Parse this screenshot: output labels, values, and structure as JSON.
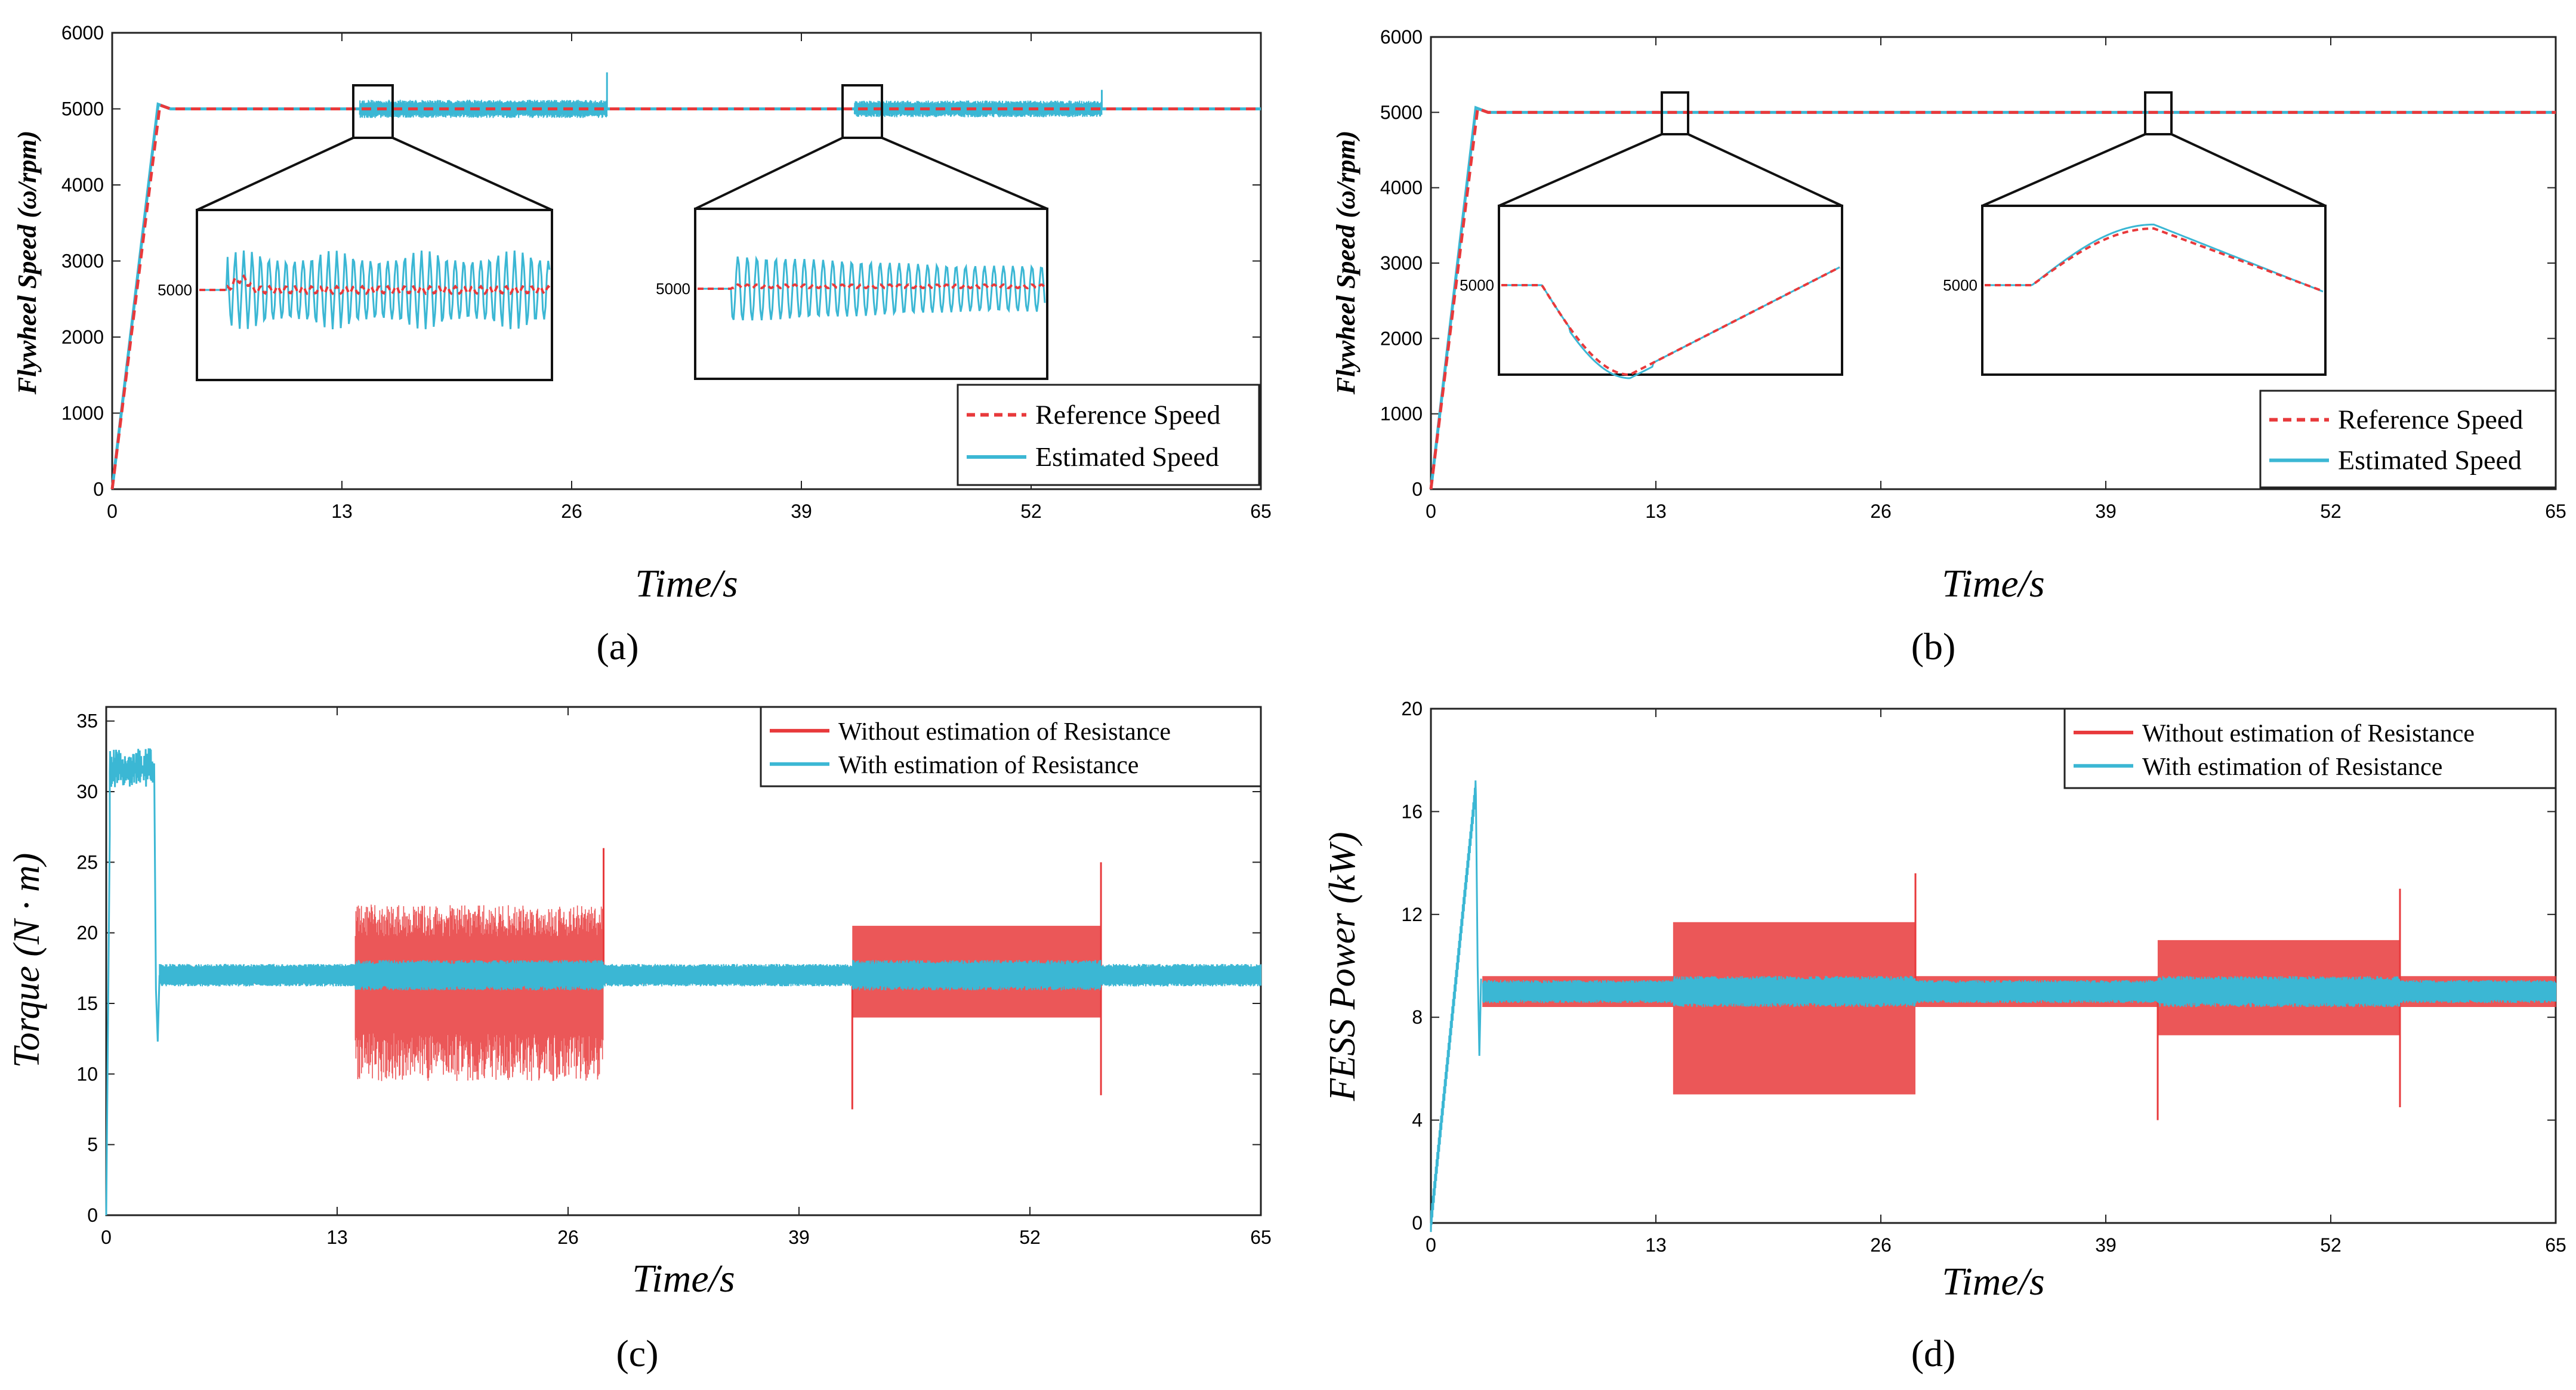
{
  "chart_data": [
    {
      "id": "a",
      "type": "line",
      "panel_label": "(a)",
      "xlabel": "Time/s",
      "ylabel": "Flywheel Speed (ω/rpm)",
      "xlim": [
        0,
        65
      ],
      "ylim": [
        0,
        6000
      ],
      "xticks": [
        0,
        13,
        26,
        39,
        52,
        65
      ],
      "yticks": [
        0,
        1000,
        2000,
        3000,
        4000,
        5000,
        6000
      ],
      "series": [
        {
          "name": "Reference Speed",
          "color": "#e8393b",
          "style": "dashed",
          "points": [
            [
              0,
              0
            ],
            [
              2.7,
              5050
            ],
            [
              3.3,
              5000
            ],
            [
              65,
              5000
            ]
          ]
        },
        {
          "name": "Estimated Speed",
          "color": "#3bb7d4",
          "style": "solid",
          "points": [
            [
              0,
              0
            ],
            [
              2.6,
              5060
            ],
            [
              3.3,
              5000
            ],
            [
              65,
              5000
            ]
          ],
          "oscillation_segments": [
            {
              "start": 14,
              "end": 28,
              "amplitude": 120
            },
            {
              "start": 42,
              "end": 56,
              "amplitude": 110
            }
          ],
          "spikes": [
            [
              28,
              5480
            ],
            [
              56,
              5250
            ]
          ]
        }
      ],
      "legend": {
        "position": "lower-right",
        "entries": [
          "Reference Speed",
          "Estimated Speed"
        ]
      },
      "insets": [
        {
          "label": "5000",
          "zoom_center_x": 14.5,
          "type": "oscillation_onset"
        },
        {
          "label": "5000",
          "zoom_center_x": 42.5,
          "type": "oscillation_decay"
        }
      ]
    },
    {
      "id": "b",
      "type": "line",
      "panel_label": "(b)",
      "xlabel": "Time/s",
      "ylabel": "Flywheel Speed (ω/rpm)",
      "xlim": [
        0,
        65
      ],
      "ylim": [
        0,
        6000
      ],
      "xticks": [
        0,
        13,
        26,
        39,
        52,
        65
      ],
      "yticks": [
        0,
        1000,
        2000,
        3000,
        4000,
        5000,
        6000
      ],
      "series": [
        {
          "name": "Reference Speed",
          "color": "#e8393b",
          "style": "dashed",
          "points": [
            [
              0,
              0
            ],
            [
              2.7,
              5050
            ],
            [
              3.3,
              5000
            ],
            [
              65,
              5000
            ]
          ]
        },
        {
          "name": "Estimated Speed",
          "color": "#3bb7d4",
          "style": "solid",
          "points": [
            [
              0,
              0
            ],
            [
              2.6,
              5060
            ],
            [
              3.3,
              5000
            ],
            [
              65,
              5000
            ]
          ]
        }
      ],
      "legend": {
        "position": "lower-right",
        "entries": [
          "Reference Speed",
          "Estimated Speed"
        ]
      },
      "insets": [
        {
          "label": "5000",
          "zoom_center_x": 14,
          "type": "dip"
        },
        {
          "label": "5000",
          "zoom_center_x": 41.5,
          "type": "bump"
        }
      ]
    },
    {
      "id": "c",
      "type": "line",
      "panel_label": "(c)",
      "xlabel": "Time/s",
      "ylabel": "Torque (N · m)",
      "xlim": [
        0,
        65
      ],
      "ylim": [
        0,
        36
      ],
      "xticks": [
        0,
        13,
        26,
        39,
        52,
        65
      ],
      "yticks": [
        0,
        5,
        10,
        15,
        20,
        25,
        30,
        35
      ],
      "series": [
        {
          "name": "Without estimation of  Resistance",
          "color": "#e8393b",
          "baseline": 17,
          "startup_level": 32.5,
          "startup_end": 2.7,
          "disturbance_segments": [
            {
              "start": 14,
              "end": 28,
              "upper": 22,
              "lower": 9.5
            },
            {
              "start": 42,
              "end": 56,
              "upper": 20.5,
              "lower": 14
            }
          ],
          "spikes": [
            [
              28,
              26
            ],
            [
              42,
              7.5
            ],
            [
              56,
              25
            ],
            [
              56,
              8.5
            ]
          ]
        },
        {
          "name": "With estimation of  Resistance",
          "color": "#3bb7d4",
          "baseline": 17,
          "startup_level": 32.5,
          "startup_end": 2.7,
          "band_halfwidth": 0.8
        }
      ],
      "legend": {
        "position": "top-right",
        "entries": [
          "Without estimation of  Resistance",
          "With estimation of  Resistance"
        ]
      }
    },
    {
      "id": "d",
      "type": "line",
      "panel_label": "(d)",
      "xlabel": "Time/s",
      "ylabel": "FESS Power (kW)",
      "xlim": [
        0,
        65
      ],
      "ylim": [
        0,
        20
      ],
      "xticks": [
        0,
        13,
        26,
        39,
        52,
        65
      ],
      "yticks": [
        0,
        4,
        8,
        12,
        16,
        20
      ],
      "series": [
        {
          "name": "Without estimation of  Resistance",
          "color": "#e8393b",
          "baseline": 9,
          "startup_peak": 17,
          "startup_end": 2.6,
          "disturbance_segments": [
            {
              "start": 14,
              "end": 28,
              "upper": 11.7,
              "lower": 5
            },
            {
              "start": 42,
              "end": 56,
              "upper": 11,
              "lower": 7.3
            }
          ],
          "spikes": [
            [
              28,
              13.6
            ],
            [
              42,
              4
            ],
            [
              56,
              13
            ],
            [
              56,
              4.5
            ]
          ]
        },
        {
          "name": "With estimation of  Resistance",
          "color": "#3bb7d4",
          "baseline": 9,
          "startup_peak": 17,
          "startup_end": 2.6,
          "band_halfwidth": 0.45
        }
      ],
      "legend": {
        "position": "top-right",
        "entries": [
          "Without estimation of  Resistance",
          "With estimation of  Resistance"
        ]
      }
    }
  ]
}
